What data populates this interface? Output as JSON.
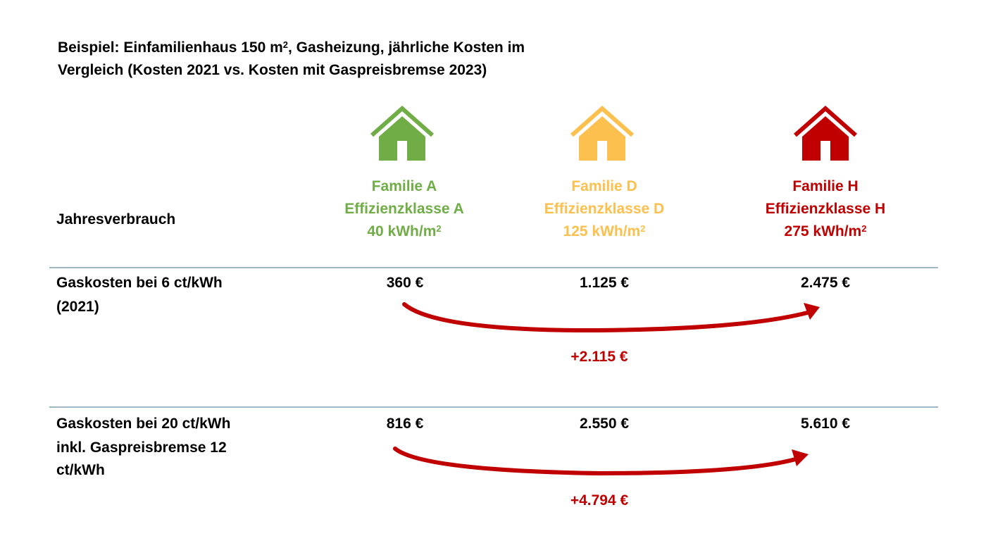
{
  "title": {
    "line1": "Beispiel: Einfamilienhaus 150 m",
    "line1_sup": "2",
    "line1_rest": ", Gasheizung, jährliche Kosten im",
    "line2": "Vergleich (Kosten 2021 vs. Kosten mit Gaspreisbremse 2023)"
  },
  "row_label_consumption": "Jahresverbrauch",
  "families": [
    {
      "name": "Familie A",
      "class": "Effizienzklasse A",
      "consumption": "40 kWh/m",
      "sup": "2",
      "color": "#70ad47",
      "icon": "house-icon"
    },
    {
      "name": "Familie D",
      "class": "Effizienzklasse D",
      "consumption": "125 kWh/m",
      "sup": "2",
      "color": "#fcc04f",
      "icon": "house-icon"
    },
    {
      "name": "Familie H",
      "class": "Effizienzklasse H",
      "consumption": "275 kWh/m",
      "sup": "2",
      "color": "#c00000",
      "icon": "house-icon"
    }
  ],
  "rows": [
    {
      "label_lines": [
        "Gaskosten bei 6 ct/kWh",
        "(2021)"
      ],
      "values": [
        "360 €",
        "1.125 €",
        "2.475 €"
      ],
      "difference": "+2.115 €"
    },
    {
      "label_lines": [
        "Gaskosten bei 20 ct/kWh",
        "inkl. Gaspreisbremse 12",
        "ct/kWh"
      ],
      "values": [
        "816 €",
        "2.550 €",
        "5.610 €"
      ],
      "difference": "+4.794 €"
    }
  ],
  "arrow_color": "#c00000"
}
